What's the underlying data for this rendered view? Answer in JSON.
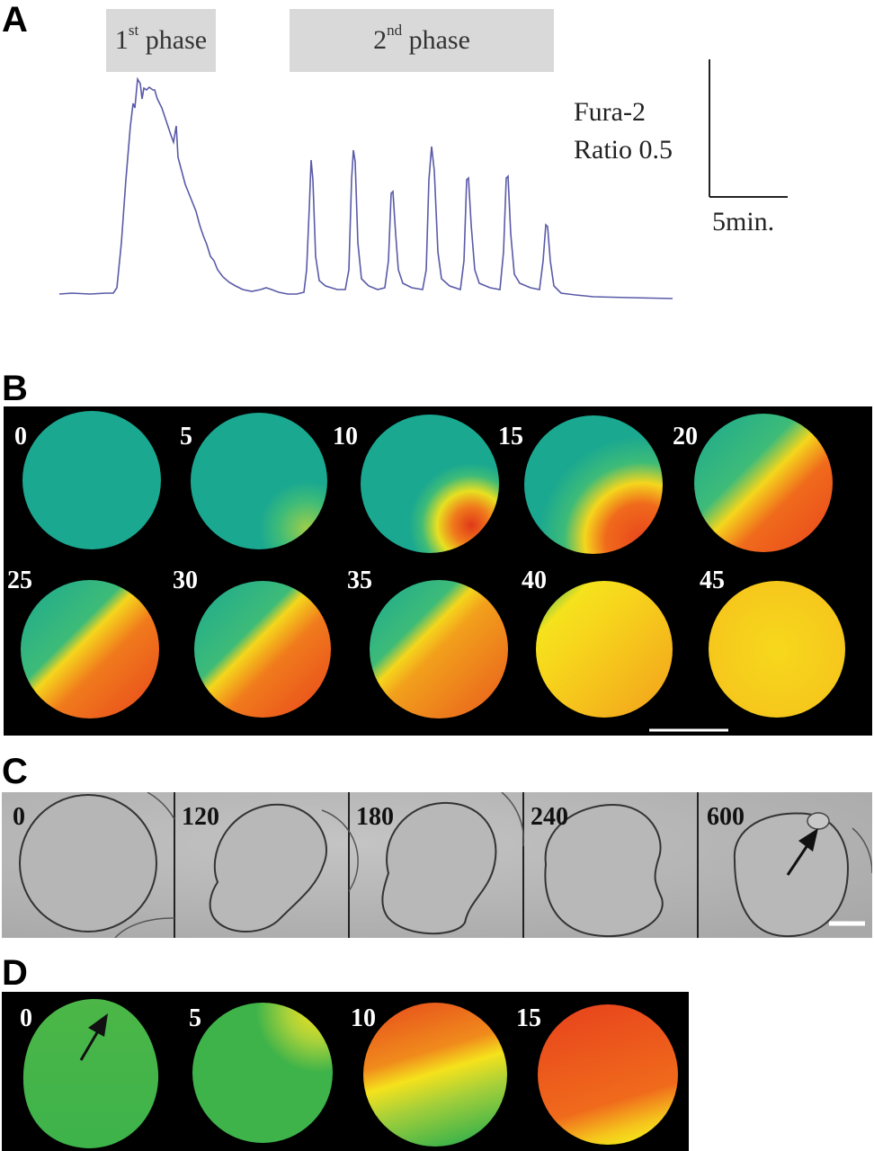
{
  "panels": {
    "a": {
      "letter": "A",
      "phase1": {
        "base": "1",
        "sup": "st",
        "rest": " phase"
      },
      "phase2": {
        "base": "2",
        "sup": "nd",
        "rest": " phase"
      },
      "scale_y_line1": "Fura-2",
      "scale_y_line2": "Ratio 0.5",
      "scale_x": "5min.",
      "trace_color": "#5a5aa8"
    },
    "b": {
      "letter": "B",
      "frames": [
        "0",
        "5",
        "10",
        "15",
        "20",
        "25",
        "30",
        "35",
        "40",
        "45"
      ]
    },
    "c": {
      "letter": "C",
      "frames": [
        "0",
        "120",
        "180",
        "240",
        "600"
      ]
    },
    "d": {
      "letter": "D",
      "frames": [
        "0",
        "5",
        "10",
        "15"
      ]
    }
  },
  "colors": {
    "low": "#1aa890",
    "mid": "#f7e21a",
    "high": "#e8461c",
    "d_low": "#3db34a"
  }
}
